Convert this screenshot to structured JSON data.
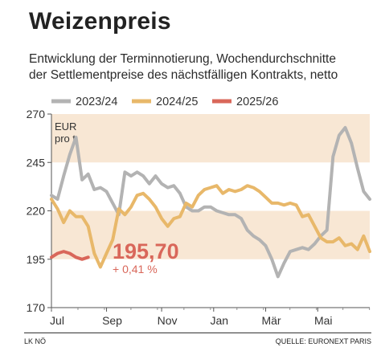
{
  "title": "Weizenpreis",
  "subtitle_lines": [
    "Entwicklung der Terminnotierung, Wochendurchschnitte",
    "der Settlementpreise des nächstfälligen Kontrakts, netto"
  ],
  "footer": {
    "left": "LK NÖ",
    "right": "QUELLE: EURONEXT PARIS"
  },
  "chart_data": {
    "type": "line",
    "unit_label_lines": [
      "EUR",
      "pro t"
    ],
    "ylim": [
      170,
      270
    ],
    "yticks": [
      170,
      195,
      220,
      245,
      270
    ],
    "x_ticks": [
      {
        "label": "Jul",
        "week": 0
      },
      {
        "label": "Sep",
        "week": 9
      },
      {
        "label": "Nov",
        "week": 18
      },
      {
        "label": "Jan",
        "week": 26.5
      },
      {
        "label": "Mär",
        "week": 35
      },
      {
        "label": "Mai",
        "week": 43.5
      }
    ],
    "bands": [
      [
        195,
        220
      ],
      [
        245,
        270
      ]
    ],
    "legend_placement": "top",
    "colors": {
      "2023/24": "#b3b3b3",
      "2024/25": "#e8b86a",
      "2025/26": "#d9675a",
      "band": "#f8e7d4"
    },
    "series": [
      {
        "name": "2023/24",
        "values": [
          228,
          226,
          238,
          249,
          258,
          236,
          239,
          231,
          232,
          230,
          224,
          218,
          240,
          238,
          240,
          238,
          234,
          238,
          234,
          232,
          233,
          229,
          222,
          220,
          220,
          222,
          222,
          220,
          219,
          218,
          218,
          216,
          210,
          207,
          205,
          202,
          195,
          186,
          193,
          199,
          200,
          201,
          200,
          203,
          207,
          210,
          248,
          259,
          263,
          255,
          242,
          230,
          226
        ]
      },
      {
        "name": "2024/25",
        "values": [
          226,
          221,
          214,
          220,
          217,
          217,
          212,
          198,
          191,
          198,
          205,
          221,
          218,
          222,
          228,
          229,
          226,
          222,
          216,
          212,
          216,
          217,
          224,
          222,
          228,
          231,
          232,
          233,
          229,
          231,
          230,
          231,
          233,
          232,
          230,
          227,
          224,
          224,
          223,
          224,
          223,
          217,
          218,
          212,
          206,
          204,
          204,
          206,
          202,
          203,
          200,
          207,
          199
        ]
      },
      {
        "name": "2025/26",
        "values": [
          196,
          198,
          199,
          198,
          196,
          195,
          196
        ]
      }
    ],
    "annotation": {
      "value": "195,70",
      "change": "+ 0,41 %"
    }
  }
}
